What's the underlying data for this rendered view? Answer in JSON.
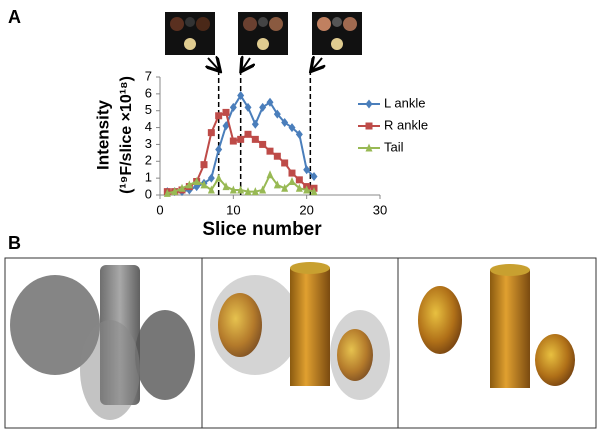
{
  "chart_data": {
    "type": "line",
    "panel_labels": [
      "A",
      "B"
    ],
    "ylabel_lines": [
      "Intensity",
      "(¹⁹F/slice ×10¹⁸)"
    ],
    "xlabel": "Slice number",
    "x": [
      1,
      2,
      3,
      4,
      5,
      6,
      7,
      8,
      9,
      10,
      11,
      12,
      13,
      14,
      15,
      16,
      17,
      18,
      19,
      20,
      21
    ],
    "series": [
      {
        "name": "L ankle",
        "color": "#4a7ebb",
        "marker": "diamond",
        "values": [
          0.2,
          0.2,
          0.2,
          0.3,
          0.5,
          0.7,
          1.0,
          2.7,
          4.1,
          5.2,
          5.9,
          5.2,
          4.2,
          5.2,
          5.5,
          4.8,
          4.3,
          4.0,
          3.6,
          1.5,
          1.1
        ]
      },
      {
        "name": "R ankle",
        "color": "#be4b48",
        "marker": "square",
        "values": [
          0.2,
          0.2,
          0.3,
          0.5,
          0.8,
          1.8,
          3.7,
          4.7,
          4.9,
          3.2,
          3.3,
          3.6,
          3.3,
          3.0,
          2.6,
          2.3,
          1.9,
          1.3,
          0.9,
          0.5,
          0.4
        ]
      },
      {
        "name": "Tail",
        "color": "#98b954",
        "marker": "triangle",
        "values": [
          0.1,
          0.2,
          0.4,
          0.6,
          0.8,
          0.6,
          0.3,
          1.0,
          0.5,
          0.3,
          0.3,
          0.2,
          0.2,
          0.3,
          1.2,
          0.6,
          0.4,
          0.8,
          0.4,
          0.3,
          0.2
        ]
      }
    ],
    "reference_lines": [
      8,
      11,
      20.5
    ],
    "xlim": [
      0,
      30
    ],
    "xticks": [
      0,
      10,
      20,
      30
    ],
    "ylim": [
      0,
      7
    ],
    "yticks": [
      0,
      1,
      2,
      3,
      4,
      5,
      6,
      7
    ],
    "grid": false
  }
}
